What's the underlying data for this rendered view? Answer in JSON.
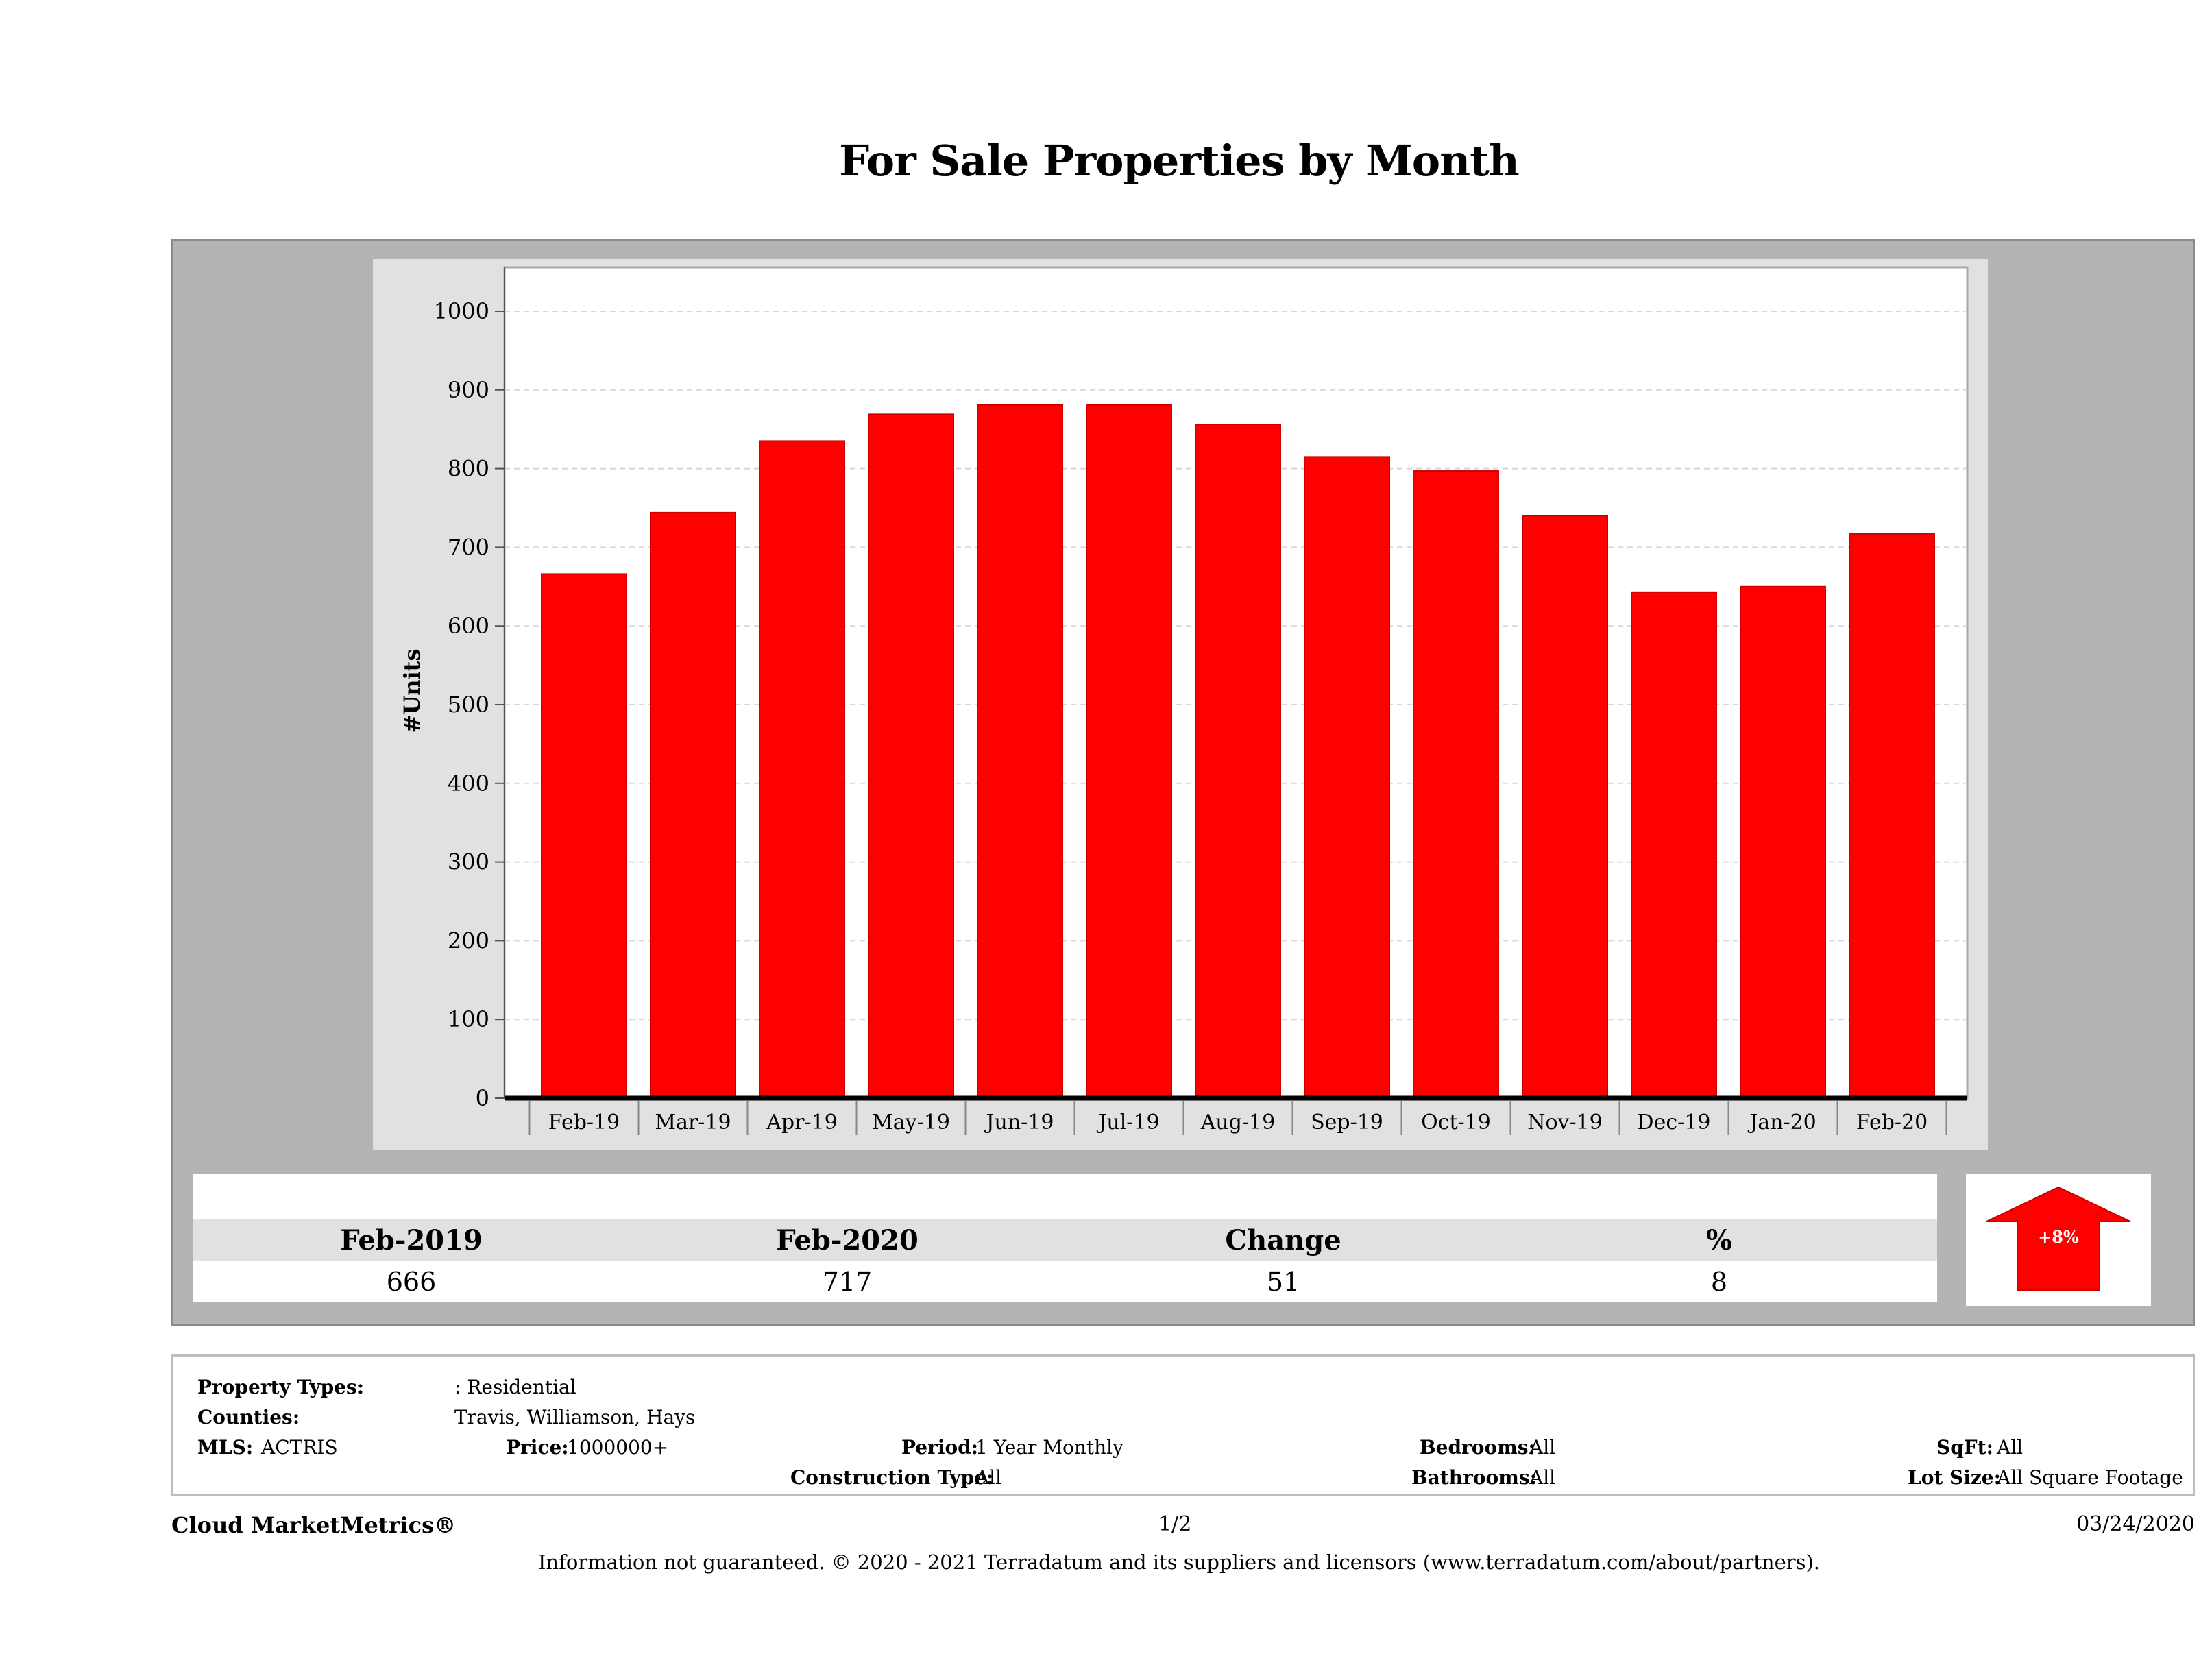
{
  "report": {
    "title": "For Sale Properties by Month"
  },
  "chart_data": {
    "type": "bar",
    "title": "For Sale Properties by Month",
    "xlabel": "",
    "ylabel": "#Units",
    "categories": [
      "Feb-19",
      "Mar-19",
      "Apr-19",
      "May-19",
      "Jun-19",
      "Jul-19",
      "Aug-19",
      "Sep-19",
      "Oct-19",
      "Nov-19",
      "Dec-19",
      "Jan-20",
      "Feb-20"
    ],
    "values": [
      666,
      744,
      835,
      869,
      881,
      881,
      856,
      815,
      797,
      740,
      643,
      650,
      717
    ],
    "ylim": [
      0,
      1000
    ],
    "yticks": [
      0,
      100,
      200,
      300,
      400,
      500,
      600,
      700,
      800,
      900,
      1000
    ],
    "grid": true,
    "bar_color": "#ff0000"
  },
  "summary": {
    "headers": [
      "Feb-2019",
      "Feb-2020",
      "Change",
      "%"
    ],
    "values": [
      "666",
      "717",
      "51",
      "8"
    ],
    "indicator": {
      "label": "+8%",
      "direction": "up",
      "color": "#ff0000"
    }
  },
  "criteria": {
    "property_types_label": "Property Types:",
    "property_types_value": ": Residential",
    "counties_label": "Counties:",
    "counties_value": "Travis, Williamson, Hays",
    "mls_label": "MLS:",
    "mls_value": "ACTRIS",
    "price_label": "Price:",
    "price_value": "1000000+",
    "period_label": "Period:",
    "period_value": "1 Year Monthly",
    "construction_label": "Construction Type:",
    "construction_value": "All",
    "bedrooms_label": "Bedrooms:",
    "bedrooms_value": "All",
    "bathrooms_label": "Bathrooms:",
    "bathrooms_value": "All",
    "sqft_label": "SqFt:",
    "sqft_value": "All",
    "lotsize_label": "Lot Size:",
    "lotsize_value": "All Square Footage"
  },
  "footer": {
    "brand": "Cloud MarketMetrics®",
    "page": "1/2",
    "date": "03/24/2020",
    "disclaimer": "Information not guaranteed. © 2020 - 2021 Terradatum and its suppliers and licensors (www.terradatum.com/about/partners)."
  }
}
